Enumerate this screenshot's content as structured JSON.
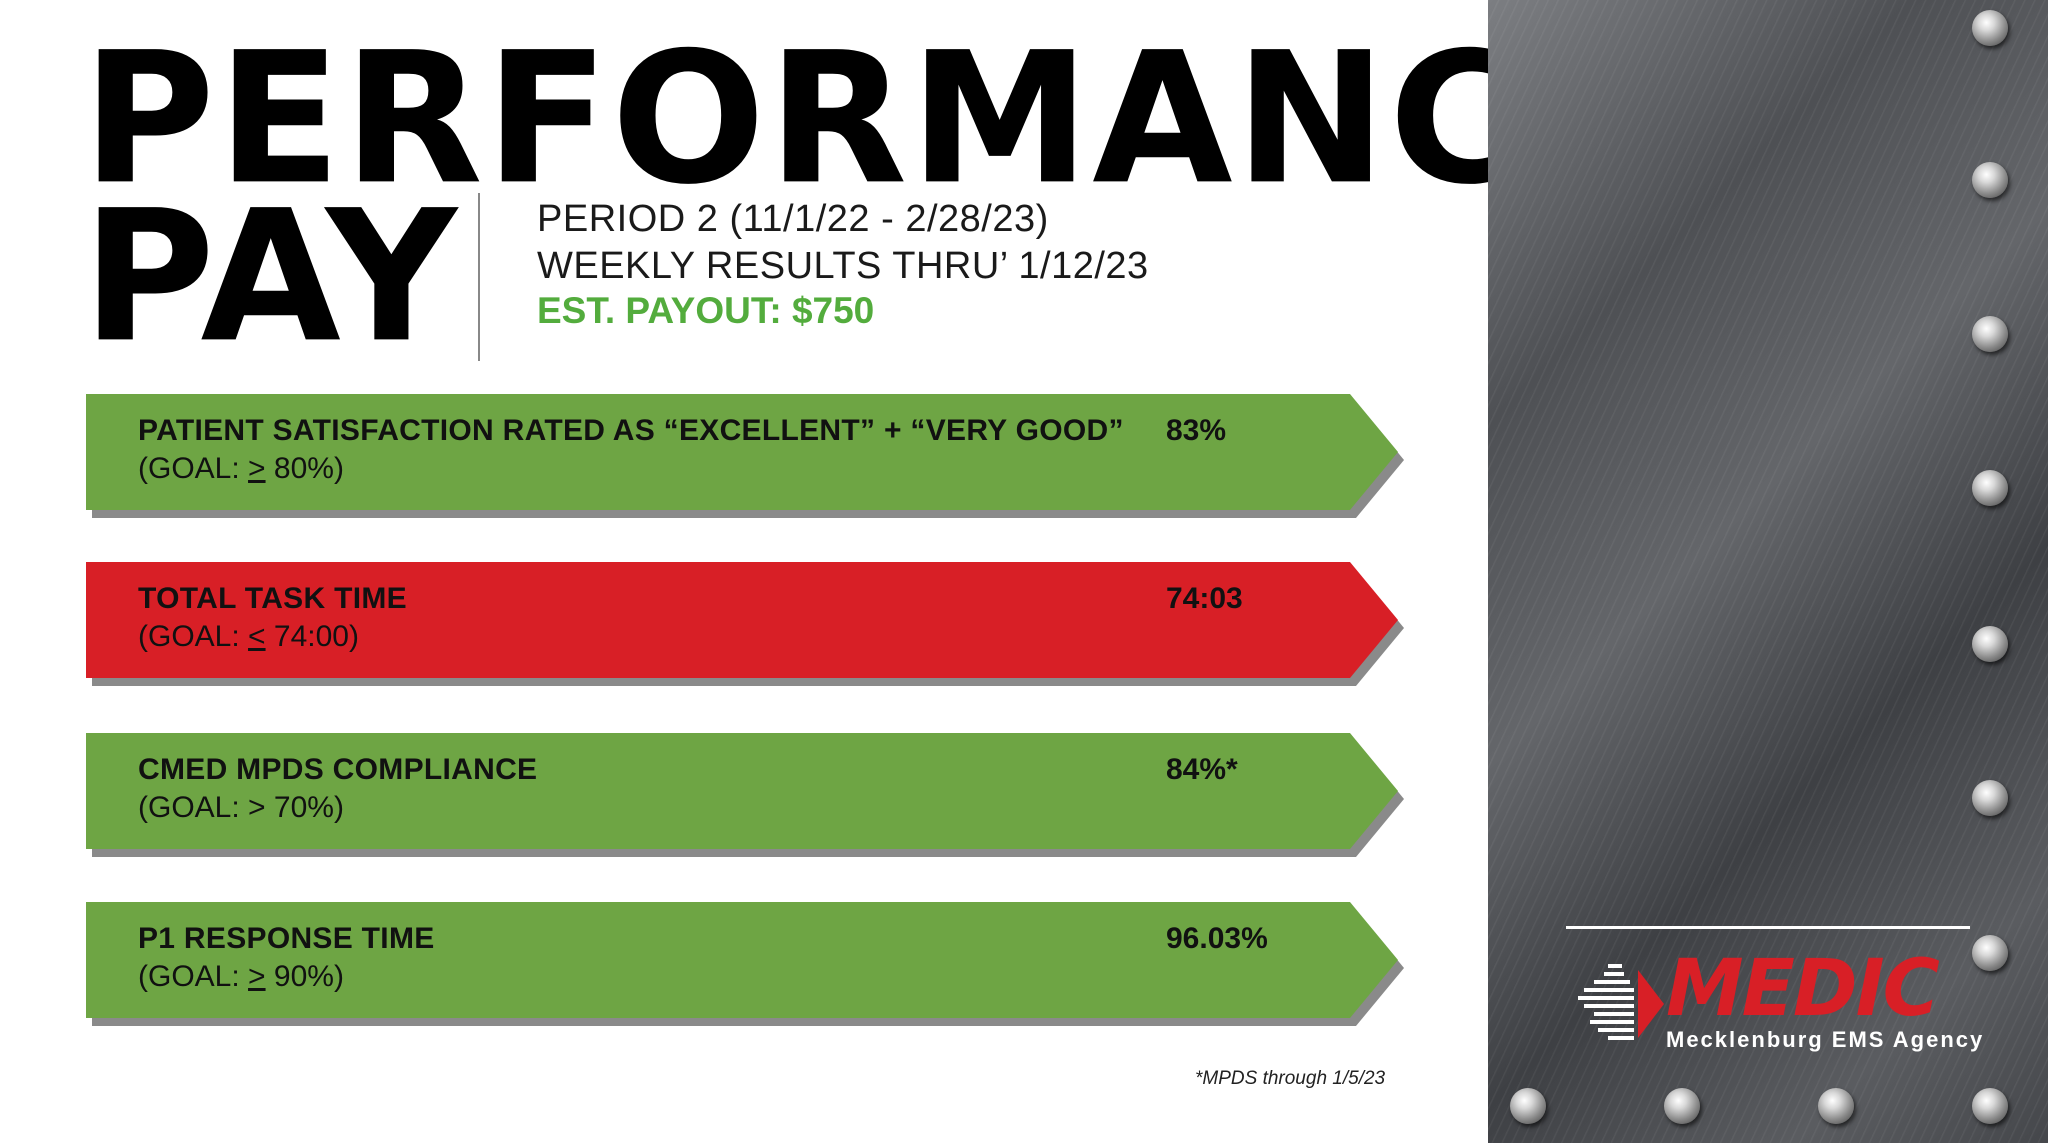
{
  "header": {
    "title_line1": "PERFORMANCE",
    "title_line2": "PAY",
    "period": "PERIOD 2 (11/1/22 - 2/28/23)",
    "weekly": "WEEKLY RESULTS THRU’ 1/12/23",
    "payout": "EST. PAYOUT: $750"
  },
  "metrics": [
    {
      "label": "PATIENT SATISFACTION RATED AS “EXCELLENT” + “VERY GOOD”",
      "goal_prefix": "(GOAL: ",
      "goal_op": ">",
      "goal_suffix": " 80%)",
      "value": "83%",
      "status": "green"
    },
    {
      "label": "TOTAL TASK TIME",
      "goal_prefix": "(GOAL: ",
      "goal_op": "<",
      "goal_suffix": " 74:00)",
      "value": "74:03",
      "status": "red"
    },
    {
      "label": "CMED MPDS COMPLIANCE",
      "goal_prefix": "(GOAL: ",
      "goal_op": ">",
      "goal_suffix": " 70%)",
      "value": "84%*",
      "status": "green"
    },
    {
      "label": "P1 RESPONSE TIME",
      "goal_prefix": "(GOAL: ",
      "goal_op": ">",
      "goal_suffix": " 90%)",
      "value": "96.03%",
      "status": "green"
    }
  ],
  "footnote": "*MPDS through 1/5/23",
  "logo": {
    "name": "MEDIC",
    "subtitle": "Mecklenburg EMS Agency"
  },
  "colors": {
    "green": "#6ea544",
    "red": "#d81f26",
    "payout_green": "#53ac3d"
  }
}
